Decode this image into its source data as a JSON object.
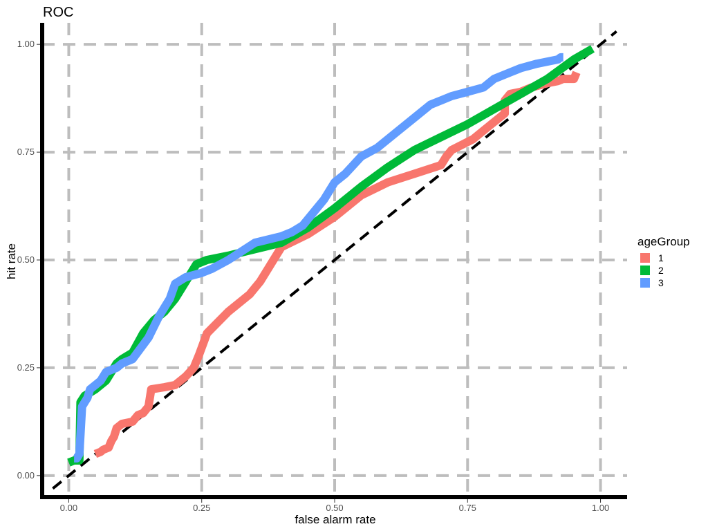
{
  "chart_data": {
    "type": "line",
    "title": "ROC",
    "xlabel": "false alarm rate",
    "ylabel": "hit rate",
    "xlim": [
      -0.05,
      1.05
    ],
    "ylim": [
      -0.05,
      1.05
    ],
    "xticks": [
      0,
      0.25,
      0.5,
      0.75,
      1
    ],
    "xtick_labels": [
      "0.00",
      "0.25",
      "0.50",
      "0.75",
      "1.00"
    ],
    "yticks": [
      0,
      0.25,
      0.5,
      0.75,
      1
    ],
    "ytick_labels": [
      "0.00",
      "0.25",
      "0.50",
      "0.75",
      "1.00"
    ],
    "grid": true,
    "legend": {
      "title": "ageGroup",
      "position": "right"
    },
    "reference_line": {
      "x": [
        -0.03,
        1.03
      ],
      "y": [
        -0.03,
        1.03
      ],
      "style": "dashed",
      "color": "#000000"
    },
    "series": [
      {
        "name": "1",
        "color": "#F8766D",
        "x": [
          0.05,
          0.06,
          0.065,
          0.075,
          0.08,
          0.085,
          0.09,
          0.1,
          0.12,
          0.13,
          0.14,
          0.15,
          0.155,
          0.18,
          0.2,
          0.22,
          0.235,
          0.245,
          0.26,
          0.3,
          0.34,
          0.36,
          0.38,
          0.4,
          0.45,
          0.5,
          0.55,
          0.6,
          0.65,
          0.7,
          0.71,
          0.72,
          0.76,
          0.78,
          0.8,
          0.82,
          0.82,
          0.83,
          0.85,
          0.87,
          0.9,
          0.92,
          0.93,
          0.95,
          0.955
        ],
        "y": [
          0.05,
          0.055,
          0.06,
          0.065,
          0.08,
          0.09,
          0.11,
          0.12,
          0.125,
          0.14,
          0.145,
          0.16,
          0.2,
          0.205,
          0.21,
          0.23,
          0.25,
          0.28,
          0.33,
          0.38,
          0.42,
          0.45,
          0.49,
          0.53,
          0.56,
          0.6,
          0.65,
          0.68,
          0.7,
          0.72,
          0.74,
          0.755,
          0.78,
          0.8,
          0.82,
          0.84,
          0.87,
          0.885,
          0.89,
          0.9,
          0.91,
          0.915,
          0.92,
          0.92,
          0.935
        ]
      },
      {
        "name": "2",
        "color": "#00BA38",
        "x": [
          0,
          0.01,
          0.02,
          0.022,
          0.03,
          0.05,
          0.07,
          0.09,
          0.1,
          0.12,
          0.14,
          0.16,
          0.18,
          0.2,
          0.22,
          0.24,
          0.26,
          0.3,
          0.35,
          0.4,
          0.45,
          0.5,
          0.55,
          0.6,
          0.65,
          0.7,
          0.75,
          0.8,
          0.85,
          0.9,
          0.95,
          0.985
        ],
        "y": [
          0.03,
          0.035,
          0.035,
          0.17,
          0.185,
          0.2,
          0.22,
          0.26,
          0.27,
          0.285,
          0.33,
          0.36,
          0.38,
          0.41,
          0.45,
          0.49,
          0.5,
          0.51,
          0.525,
          0.54,
          0.575,
          0.62,
          0.67,
          0.715,
          0.755,
          0.785,
          0.815,
          0.85,
          0.885,
          0.92,
          0.965,
          0.99
        ]
      },
      {
        "name": "3",
        "color": "#619CFF",
        "x": [
          0.01,
          0.015,
          0.02,
          0.025,
          0.03,
          0.035,
          0.04,
          0.05,
          0.06,
          0.07,
          0.09,
          0.1,
          0.12,
          0.15,
          0.17,
          0.19,
          0.2,
          0.22,
          0.25,
          0.27,
          0.3,
          0.35,
          0.4,
          0.42,
          0.44,
          0.46,
          0.48,
          0.49,
          0.5,
          0.52,
          0.55,
          0.58,
          0.6,
          0.62,
          0.65,
          0.68,
          0.7,
          0.72,
          0.75,
          0.78,
          0.8,
          0.83,
          0.85,
          0.88,
          0.9,
          0.92,
          0.925,
          0.93
        ],
        "y": [
          0.04,
          0.04,
          0.05,
          0.16,
          0.17,
          0.18,
          0.2,
          0.21,
          0.22,
          0.24,
          0.25,
          0.26,
          0.27,
          0.32,
          0.37,
          0.41,
          0.445,
          0.46,
          0.47,
          0.48,
          0.5,
          0.54,
          0.555,
          0.565,
          0.58,
          0.61,
          0.64,
          0.66,
          0.68,
          0.7,
          0.74,
          0.76,
          0.78,
          0.8,
          0.83,
          0.86,
          0.87,
          0.88,
          0.89,
          0.9,
          0.92,
          0.935,
          0.945,
          0.955,
          0.96,
          0.965,
          0.97,
          0.97
        ]
      }
    ]
  }
}
